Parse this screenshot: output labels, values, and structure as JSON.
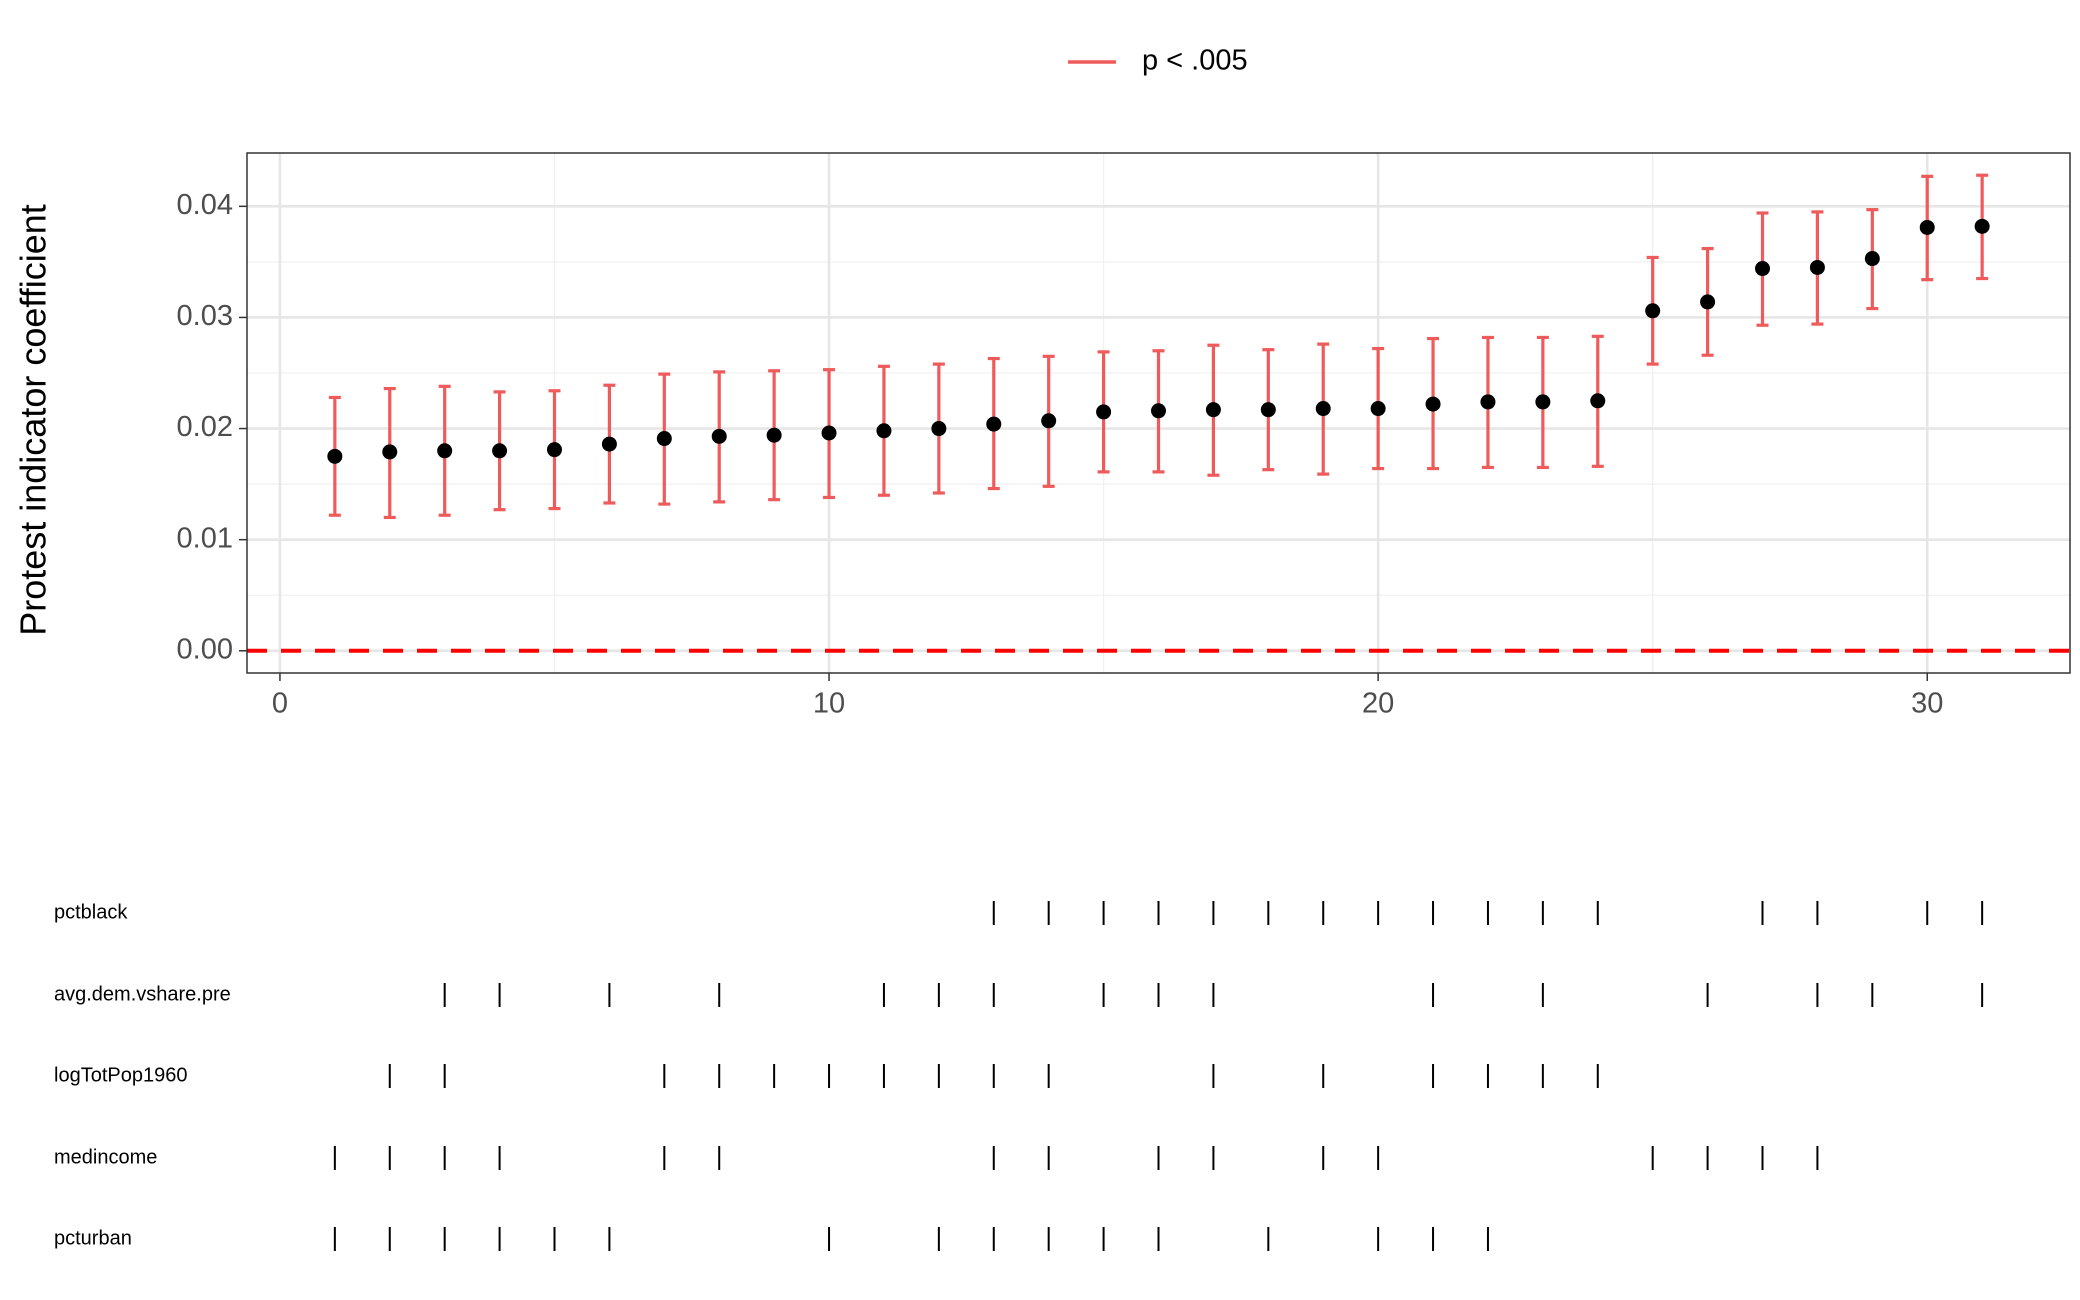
{
  "chart_data": {
    "type": "errorbar",
    "ylabel": "Protest indicator coefficient",
    "xlim": [
      -0.6,
      32.6
    ],
    "ylim": [
      -0.002,
      0.0448
    ],
    "xticks": [
      0,
      10,
      20,
      30
    ],
    "yticks": [
      {
        "value": 0,
        "label": "0.00"
      },
      {
        "value": 0.01,
        "label": "0.01"
      },
      {
        "value": 0.02,
        "label": "0.02"
      },
      {
        "value": 0.03,
        "label": "0.03"
      },
      {
        "value": 0.04,
        "label": "0.04"
      }
    ],
    "x_minor_ticks": [
      5,
      15,
      25
    ],
    "y_minor_ticks": [
      0.005,
      0.015,
      0.025,
      0.035
    ],
    "grid": true,
    "legend_position": "top",
    "reference_line": {
      "value": 0,
      "color": "#ff0000"
    },
    "series": [
      {
        "name": "p < .005",
        "color": "#ef5b5b",
        "x": [
          1,
          2,
          3,
          4,
          5,
          6,
          7,
          8,
          9,
          10,
          11,
          12,
          13,
          14,
          15,
          16,
          17,
          18,
          19,
          20,
          21,
          22,
          23,
          24,
          25,
          26,
          27,
          28,
          29,
          30,
          31
        ],
        "values": [
          0.0175,
          0.0179,
          0.018,
          0.018,
          0.0181,
          0.0186,
          0.0191,
          0.0193,
          0.0194,
          0.0196,
          0.0198,
          0.02,
          0.0204,
          0.0207,
          0.0215,
          0.0216,
          0.0217,
          0.0217,
          0.0218,
          0.0218,
          0.0222,
          0.0224,
          0.0224,
          0.0225,
          0.0306,
          0.0314,
          0.0344,
          0.0345,
          0.0353,
          0.0381,
          0.0382
        ],
        "lower": [
          0.0122,
          0.012,
          0.0122,
          0.0127,
          0.0128,
          0.0133,
          0.0132,
          0.0134,
          0.0136,
          0.0138,
          0.014,
          0.0142,
          0.0146,
          0.0148,
          0.0161,
          0.0161,
          0.0158,
          0.0163,
          0.0159,
          0.0164,
          0.0164,
          0.0165,
          0.0165,
          0.0166,
          0.0258,
          0.0266,
          0.0293,
          0.0294,
          0.0308,
          0.0334,
          0.0335
        ],
        "upper": [
          0.0228,
          0.0236,
          0.0238,
          0.0233,
          0.0234,
          0.0239,
          0.0249,
          0.0251,
          0.0252,
          0.0253,
          0.0256,
          0.0258,
          0.0263,
          0.0265,
          0.0269,
          0.027,
          0.0275,
          0.0271,
          0.0276,
          0.0272,
          0.0281,
          0.0282,
          0.0282,
          0.0283,
          0.0354,
          0.0362,
          0.0394,
          0.0395,
          0.0397,
          0.0427,
          0.0428
        ]
      }
    ],
    "indicators": [
      {
        "name": "pctblack",
        "x": [
          13,
          14,
          15,
          16,
          17,
          18,
          19,
          20,
          21,
          22,
          23,
          24,
          27,
          28,
          30,
          31
        ]
      },
      {
        "name": "avg.dem.vshare.pre",
        "x": [
          3,
          4,
          6,
          8,
          11,
          12,
          13,
          15,
          16,
          17,
          21,
          23,
          26,
          28,
          29,
          31
        ]
      },
      {
        "name": "logTotPop1960",
        "x": [
          2,
          3,
          7,
          8,
          9,
          10,
          11,
          12,
          13,
          14,
          17,
          19,
          21,
          22,
          23,
          24
        ]
      },
      {
        "name": "medincome",
        "x": [
          1,
          2,
          3,
          4,
          7,
          8,
          13,
          14,
          16,
          17,
          19,
          20,
          25,
          26,
          27,
          28
        ]
      },
      {
        "name": "pcturban",
        "x": [
          1,
          2,
          3,
          4,
          5,
          6,
          10,
          12,
          13,
          14,
          15,
          16,
          18,
          20,
          21,
          22
        ]
      }
    ]
  }
}
